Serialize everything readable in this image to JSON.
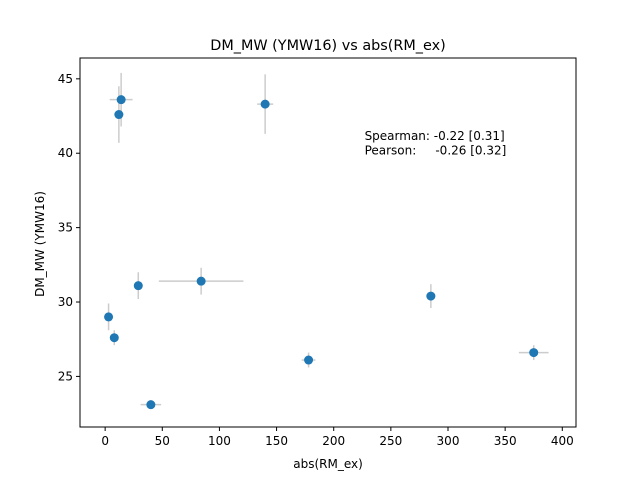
{
  "chart_data": {
    "type": "scatter",
    "title": "DM_MW (YMW16) vs abs(RM_ex)",
    "xlabel": "abs(RM_ex)",
    "ylabel": "DM_MW (YMW16)",
    "xlim": [
      -22,
      412
    ],
    "ylim": [
      21.6,
      46.4
    ],
    "xticks": [
      0,
      50,
      100,
      150,
      200,
      250,
      300,
      350,
      400
    ],
    "yticks": [
      25,
      30,
      35,
      40,
      45
    ],
    "grid": false,
    "marker_color": "#1f77b4",
    "errorbar_color": "#cccccc",
    "points": [
      {
        "x": 14,
        "y": 43.6,
        "xerr": 10,
        "yerr": 1.8
      },
      {
        "x": 12,
        "y": 42.6,
        "xerr": 4,
        "yerr": 1.9
      },
      {
        "x": 140,
        "y": 43.3,
        "xerr": 7,
        "yerr": 2.0
      },
      {
        "x": 29,
        "y": 31.1,
        "xerr": 2,
        "yerr": 0.9
      },
      {
        "x": 84,
        "y": 31.4,
        "xerr": 37,
        "yerr": 0.9
      },
      {
        "x": 3,
        "y": 29.0,
        "xerr": 2,
        "yerr": 0.9
      },
      {
        "x": 8,
        "y": 27.6,
        "xerr": 2,
        "yerr": 0.5
      },
      {
        "x": 40,
        "y": 23.1,
        "xerr": 9,
        "yerr": 0.3
      },
      {
        "x": 178,
        "y": 26.1,
        "xerr": 6,
        "yerr": 0.5
      },
      {
        "x": 285,
        "y": 30.4,
        "xerr": 4,
        "yerr": 0.8
      },
      {
        "x": 375,
        "y": 26.6,
        "xerr": 13,
        "yerr": 0.5
      }
    ],
    "annotations": [
      {
        "text": "Spearman: -0.22 [0.31]",
        "x": 227,
        "y": 40.9
      },
      {
        "text": "Pearson:     -0.26 [0.32]",
        "x": 227,
        "y": 39.9
      }
    ]
  }
}
